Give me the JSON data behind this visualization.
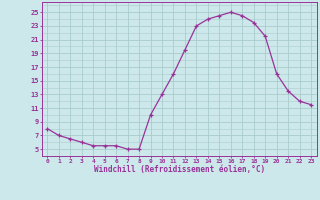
{
  "x": [
    0,
    1,
    2,
    3,
    4,
    5,
    6,
    7,
    8,
    9,
    10,
    11,
    12,
    13,
    14,
    15,
    16,
    17,
    18,
    19,
    20,
    21,
    22,
    23
  ],
  "y": [
    8,
    7,
    6.5,
    6,
    5.5,
    5.5,
    5.5,
    5,
    5,
    10,
    13,
    16,
    19.5,
    23,
    24,
    24.5,
    25,
    24.5,
    23.5,
    21.5,
    16,
    13.5,
    12,
    11.5
  ],
  "line_color": "#993399",
  "marker": "+",
  "bg_color": "#cce8ea",
  "grid_color": "#aacccc",
  "xlabel": "Windchill (Refroidissement éolien,°C)",
  "xlabel_color": "#993399",
  "tick_color": "#993399",
  "ylabel_ticks": [
    5,
    7,
    9,
    11,
    13,
    15,
    17,
    19,
    21,
    23,
    25
  ],
  "xtick_labels": [
    "0",
    "1",
    "2",
    "3",
    "4",
    "5",
    "6",
    "7",
    "8",
    "9",
    "10",
    "11",
    "12",
    "13",
    "14",
    "15",
    "16",
    "17",
    "18",
    "19",
    "20",
    "21",
    "22",
    "23"
  ],
  "xlim": [
    -0.5,
    23.5
  ],
  "ylim": [
    4.0,
    26.5
  ]
}
